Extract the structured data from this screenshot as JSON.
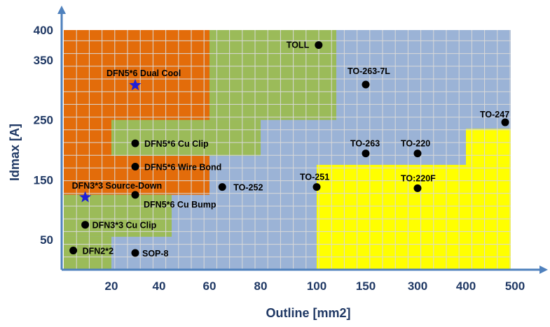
{
  "chart_data": {
    "type": "scatter",
    "xlabel": "Outline [mm2]",
    "ylabel": "Idmax [A]",
    "x_ticks": [
      "20",
      "40",
      "60",
      "80",
      "100",
      "150",
      "300",
      "400",
      "500"
    ],
    "y_ticks": [
      "50",
      "150",
      "250",
      "350",
      "400"
    ],
    "grid": true,
    "zones": [
      {
        "color": "#9bb3d6",
        "x": [
          0,
          500
        ],
        "y": [
          0,
          400
        ]
      },
      {
        "color": "#e36c0a",
        "x": [
          0,
          60
        ],
        "y": [
          125,
          400
        ]
      },
      {
        "color": "#9bbb59",
        "x": [
          60,
          120
        ],
        "y": [
          250,
          400
        ]
      },
      {
        "color": "#9bbb59",
        "x": [
          20,
          80
        ],
        "y": [
          190,
          250
        ]
      },
      {
        "color": "#9bbb59",
        "x": [
          0,
          45
        ],
        "y": [
          55,
          125
        ]
      },
      {
        "color": "#9bbb59",
        "x": [
          0,
          20
        ],
        "y": [
          0,
          55
        ]
      },
      {
        "color": "#ffff00",
        "x": [
          100,
          500
        ],
        "y": [
          0,
          175
        ]
      },
      {
        "color": "#ffff00",
        "x": [
          400,
          500
        ],
        "y": [
          175,
          235
        ]
      }
    ],
    "points": [
      {
        "label": "TOLL",
        "x": 102,
        "y": 375,
        "marker": "circle"
      },
      {
        "label": "TO-263-7L",
        "x": 150,
        "y": 309,
        "marker": "circle"
      },
      {
        "label": "TO-247",
        "x": 480,
        "y": 246,
        "marker": "circle"
      },
      {
        "label": "TO-263",
        "x": 150,
        "y": 194,
        "marker": "circle"
      },
      {
        "label": "TO-220",
        "x": 300,
        "y": 194,
        "marker": "circle"
      },
      {
        "label": "TO-251",
        "x": 100,
        "y": 138,
        "marker": "circle"
      },
      {
        "label": "TO:220F",
        "x": 300,
        "y": 136,
        "marker": "circle"
      },
      {
        "label": "TO-252",
        "x": 65,
        "y": 138,
        "marker": "circle"
      },
      {
        "label": "DFN5*6 Dual Cool",
        "x": 30,
        "y": 308,
        "marker": "star"
      },
      {
        "label": "DFN5*6 Cu Clip",
        "x": 30,
        "y": 211,
        "marker": "circle"
      },
      {
        "label": "DFN5*6 Wire Bond",
        "x": 30,
        "y": 172,
        "marker": "circle"
      },
      {
        "label": "DFN5*6 Cu Bump",
        "x": 30,
        "y": 125,
        "marker": "circle"
      },
      {
        "label": "DFN3*3 Source-Down",
        "x": 9,
        "y": 121,
        "marker": "star"
      },
      {
        "label": "DFN3*3 Cu Clip",
        "x": 9,
        "y": 75,
        "marker": "circle"
      },
      {
        "label": "DFN2*2",
        "x": 4,
        "y": 32,
        "marker": "circle"
      },
      {
        "label": "SOP-8",
        "x": 30,
        "y": 28,
        "marker": "circle"
      }
    ]
  },
  "colors": {
    "axis": "#4f81bd",
    "text": "#1f3864",
    "grid": "#d9d9d9",
    "star": "#1f1fd8",
    "point": "#000000"
  }
}
